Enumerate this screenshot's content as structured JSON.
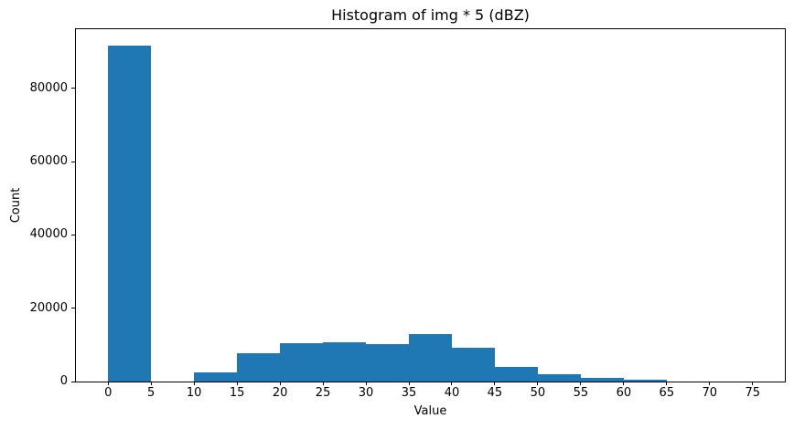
{
  "figure": {
    "background": "#ffffff",
    "text_color": "#000000",
    "spine_color": "#000000"
  },
  "chart_data": {
    "type": "bar",
    "subtype": "histogram",
    "title": "Histogram of img * 5 (dBZ)",
    "xlabel": "Value",
    "ylabel": "Count",
    "bar_color": "#1f77b4",
    "bin_edges": [
      0,
      5,
      10,
      15,
      20,
      25,
      30,
      35,
      40,
      45,
      50,
      55,
      60,
      65,
      70,
      75
    ],
    "counts": [
      91500,
      0,
      2600,
      7800,
      10500,
      10700,
      10300,
      12900,
      9300,
      4100,
      2100,
      900,
      500,
      0,
      0
    ],
    "xticks": [
      0,
      5,
      10,
      15,
      20,
      25,
      30,
      35,
      40,
      45,
      50,
      55,
      60,
      65,
      70,
      75
    ],
    "yticks": [
      0,
      20000,
      40000,
      60000,
      80000
    ],
    "xlim": [
      -3.75,
      78.75
    ],
    "ylim": [
      0,
      96100
    ],
    "grid": false,
    "legend": null
  }
}
